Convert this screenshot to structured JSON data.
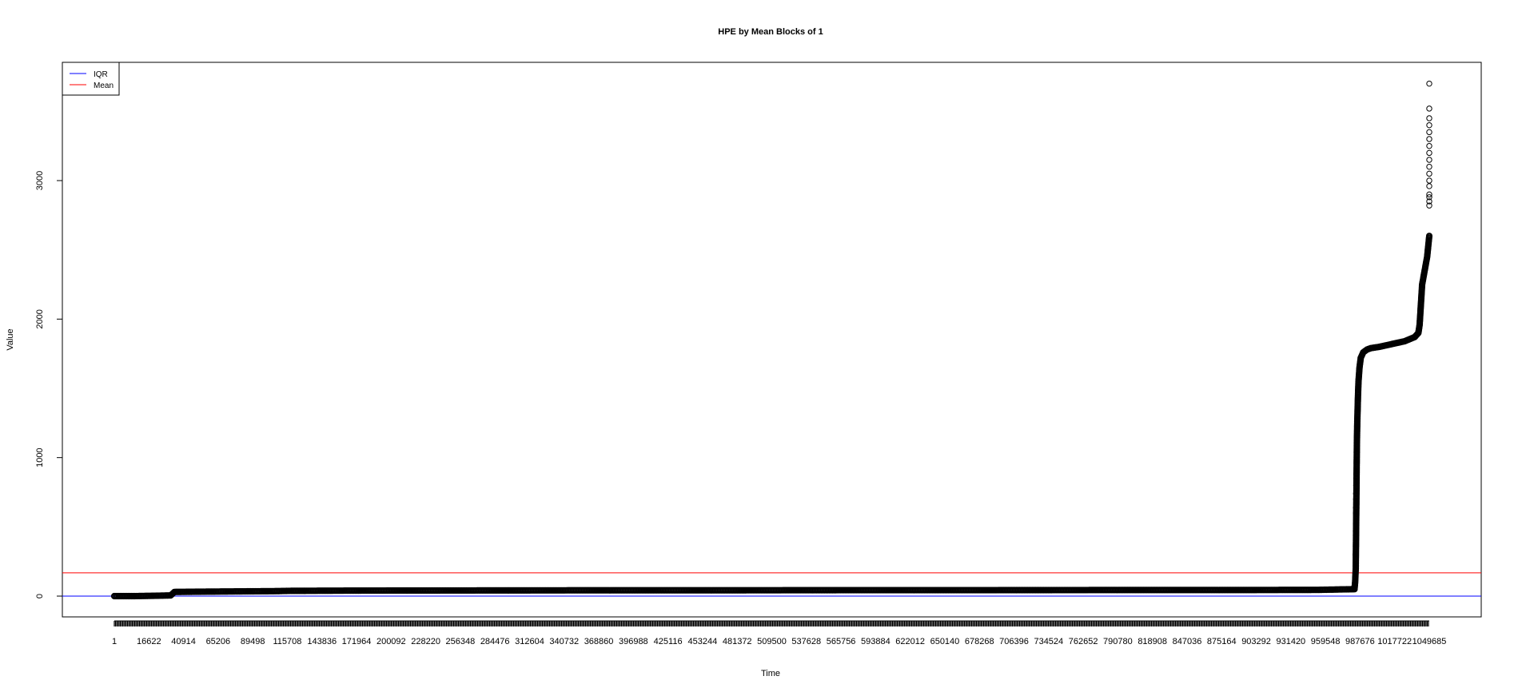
{
  "chart_data": {
    "type": "scatter",
    "title": "HPE by Mean Blocks of 1",
    "xlabel": "Time",
    "ylabel": "Value",
    "xlim": [
      1,
      1049685
    ],
    "ylim": [
      -150,
      3850
    ],
    "y_ticks": [
      0,
      1000,
      2000,
      3000
    ],
    "x_tick_labels": [
      "1",
      "16622",
      "40914",
      "65206",
      "89498",
      "115708",
      "143836",
      "171964",
      "200092",
      "228220",
      "256348",
      "284476",
      "312604",
      "340732",
      "368860",
      "396988",
      "425116",
      "453244",
      "481372",
      "509500",
      "537628",
      "565756",
      "593884",
      "622012",
      "650140",
      "678268",
      "706396",
      "734524",
      "762652",
      "790780",
      "818908",
      "847036",
      "875164",
      "903292",
      "931420",
      "959548",
      "987676",
      "1017722",
      "1049685"
    ],
    "grid": false,
    "legend_position": "top-left",
    "series": [
      {
        "name": "IQR",
        "kind": "hline",
        "color": "#0000ff",
        "value": 0
      },
      {
        "name": "Mean",
        "kind": "hline",
        "color": "#ff0000",
        "value": 168
      },
      {
        "kind": "points",
        "color": "#000000",
        "x": [
          1,
          15000,
          30000,
          45000,
          48000,
          70000,
          100000,
          130000,
          140000,
          200000,
          300000,
          400000,
          500000,
          600000,
          700000,
          800000,
          900000,
          960000,
          990000,
          990500,
          991000,
          991300,
          991600,
          991900,
          992200,
          992500,
          992800,
          993200,
          994000,
          995000,
          997000,
          1000000,
          1003000,
          1010000,
          1020000,
          1030000,
          1038000,
          1041000,
          1042000,
          1044000,
          1046000,
          1048000,
          1049685
        ],
        "y": [
          0,
          0,
          2,
          5,
          30,
          32,
          34,
          36,
          38,
          40,
          41,
          42,
          42,
          43,
          43,
          44,
          44,
          45,
          50,
          100,
          200,
          500,
          800,
          1100,
          1250,
          1350,
          1450,
          1550,
          1650,
          1720,
          1760,
          1780,
          1790,
          1800,
          1820,
          1840,
          1870,
          1900,
          1960,
          2250,
          2350,
          2450,
          2600
        ]
      },
      {
        "kind": "outliers",
        "color": "#000000",
        "x": [
          990800,
          991000,
          991050,
          991100,
          991150,
          991200,
          991250,
          991300,
          991350,
          991400,
          1049685,
          1049685,
          1049685,
          1049685,
          1049685,
          1049685,
          1049685,
          1049685,
          1049685,
          1049685,
          1049685,
          1049685,
          1049685,
          1049685,
          1049685,
          1049685,
          1049685
        ],
        "y": [
          300,
          470,
          520,
          600,
          640,
          700,
          740,
          800,
          850,
          880,
          2820,
          2850,
          2900,
          2960,
          3000,
          3050,
          3100,
          3150,
          3200,
          3250,
          3300,
          3350,
          3400,
          3450,
          3520,
          3700,
          2880
        ]
      }
    ]
  }
}
